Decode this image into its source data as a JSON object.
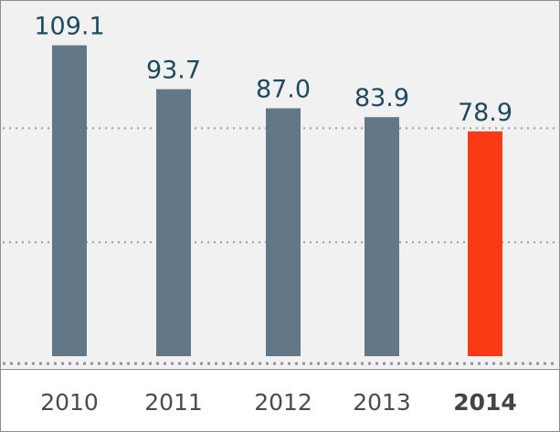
{
  "chart_data": {
    "type": "bar",
    "categories": [
      "2010",
      "2011",
      "2012",
      "2013",
      "2014"
    ],
    "values": [
      109.1,
      93.7,
      87.0,
      83.9,
      78.9
    ],
    "value_labels": [
      "109.1",
      "93.7",
      "87.0",
      "83.9",
      "78.9"
    ],
    "highlight_index": 4,
    "title": "",
    "xlabel": "",
    "ylabel": "",
    "ylim": [
      0,
      120
    ],
    "grid": true,
    "legend": "none"
  },
  "colors": {
    "bar": "#627887",
    "highlight_bar": "#fa3a14",
    "label_text": "#1e4a5f",
    "axis_text": "#4b4b4b",
    "highlight_axis_text": "#444444",
    "panel_bg": "#f1f1f1",
    "axis_bg": "#ffffff",
    "border": "#8e8e8e",
    "grid": "#9a9a9a",
    "baseline": "#8f949a"
  }
}
